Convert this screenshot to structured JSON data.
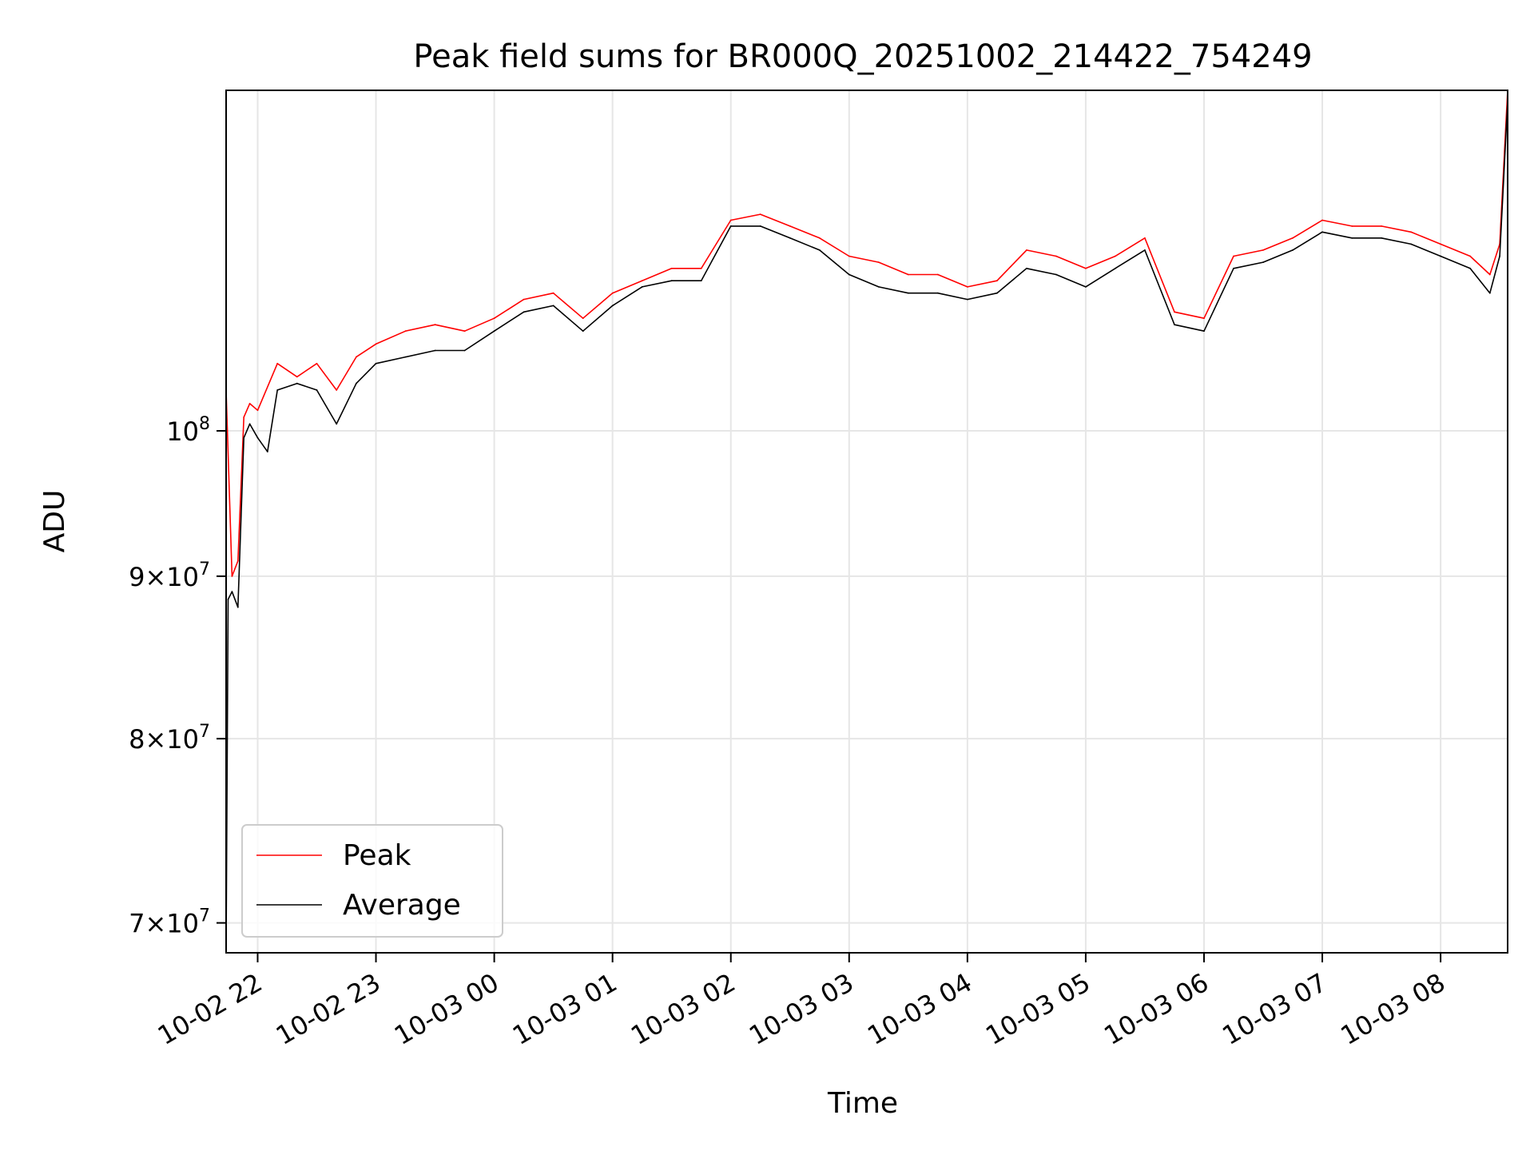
{
  "chart_data": {
    "type": "line",
    "title": "Peak field sums for BR000Q_20251002_214422_754249",
    "xlabel": "Time",
    "ylabel": "ADU",
    "y_scale": "log",
    "ylim": [
      68500000,
      128000000
    ],
    "xlim": [
      "2025-10-02 21:44",
      "2025-10-03 08:34"
    ],
    "grid": true,
    "legend_position": "lower-left",
    "x_ticks": [
      {
        "value": "2025-10-02 22:00",
        "label": "10-02 22"
      },
      {
        "value": "2025-10-02 23:00",
        "label": "10-02 23"
      },
      {
        "value": "2025-10-03 00:00",
        "label": "10-03 00"
      },
      {
        "value": "2025-10-03 01:00",
        "label": "10-03 01"
      },
      {
        "value": "2025-10-03 02:00",
        "label": "10-03 02"
      },
      {
        "value": "2025-10-03 03:00",
        "label": "10-03 03"
      },
      {
        "value": "2025-10-03 04:00",
        "label": "10-03 04"
      },
      {
        "value": "2025-10-03 05:00",
        "label": "10-03 05"
      },
      {
        "value": "2025-10-03 06:00",
        "label": "10-03 06"
      },
      {
        "value": "2025-10-03 07:00",
        "label": "10-03 07"
      },
      {
        "value": "2025-10-03 08:00",
        "label": "10-03 08"
      }
    ],
    "y_ticks": [
      {
        "value": 70000000,
        "mant": "7",
        "exp": "7"
      },
      {
        "value": 80000000,
        "mant": "8",
        "exp": "7"
      },
      {
        "value": 90000000,
        "mant": "9",
        "exp": "7"
      },
      {
        "value": 100000000,
        "mant": "",
        "exp": "8"
      }
    ],
    "series": [
      {
        "name": "Peak",
        "color": "#ff0000",
        "x": [
          "2025-10-02 21:44",
          "2025-10-02 21:47",
          "2025-10-02 21:50",
          "2025-10-02 21:53",
          "2025-10-02 21:56",
          "2025-10-02 22:00",
          "2025-10-02 22:10",
          "2025-10-02 22:20",
          "2025-10-02 22:30",
          "2025-10-02 22:40",
          "2025-10-02 22:50",
          "2025-10-02 23:00",
          "2025-10-02 23:15",
          "2025-10-02 23:30",
          "2025-10-02 23:45",
          "2025-10-03 00:00",
          "2025-10-03 00:15",
          "2025-10-03 00:30",
          "2025-10-03 00:45",
          "2025-10-03 01:00",
          "2025-10-03 01:15",
          "2025-10-03 01:30",
          "2025-10-03 01:45",
          "2025-10-03 02:00",
          "2025-10-03 02:15",
          "2025-10-03 02:30",
          "2025-10-03 02:45",
          "2025-10-03 03:00",
          "2025-10-03 03:15",
          "2025-10-03 03:30",
          "2025-10-03 03:45",
          "2025-10-03 04:00",
          "2025-10-03 04:15",
          "2025-10-03 04:30",
          "2025-10-03 04:45",
          "2025-10-03 05:00",
          "2025-10-03 05:15",
          "2025-10-03 05:30",
          "2025-10-03 05:45",
          "2025-10-03 06:00",
          "2025-10-03 06:15",
          "2025-10-03 06:30",
          "2025-10-03 06:45",
          "2025-10-03 07:00",
          "2025-10-03 07:15",
          "2025-10-03 07:30",
          "2025-10-03 07:45",
          "2025-10-03 08:00",
          "2025-10-03 08:15",
          "2025-10-03 08:25",
          "2025-10-03 08:30",
          "2025-10-03 08:34"
        ],
        "values": [
          103000000,
          90000000,
          91000000,
          101000000,
          102000000,
          101500000,
          105000000,
          104000000,
          105000000,
          103000000,
          105500000,
          106500000,
          107500000,
          108000000,
          107500000,
          108500000,
          110000000,
          110500000,
          108500000,
          110500000,
          111500000,
          112500000,
          112500000,
          116500000,
          117000000,
          116000000,
          115000000,
          113500000,
          113000000,
          112000000,
          112000000,
          111000000,
          111500000,
          114000000,
          113500000,
          112500000,
          113500000,
          115000000,
          109000000,
          108500000,
          113500000,
          114000000,
          115000000,
          116500000,
          116000000,
          116000000,
          115500000,
          114500000,
          113500000,
          112000000,
          114500000,
          128000000
        ]
      },
      {
        "name": "Average",
        "color": "#000000",
        "x": [
          "2025-10-02 21:44",
          "2025-10-02 21:45",
          "2025-10-02 21:47",
          "2025-10-02 21:50",
          "2025-10-02 21:53",
          "2025-10-02 21:56",
          "2025-10-02 22:00",
          "2025-10-02 22:05",
          "2025-10-02 22:10",
          "2025-10-02 22:20",
          "2025-10-02 22:30",
          "2025-10-02 22:40",
          "2025-10-02 22:50",
          "2025-10-02 23:00",
          "2025-10-02 23:15",
          "2025-10-02 23:30",
          "2025-10-02 23:45",
          "2025-10-03 00:00",
          "2025-10-03 00:15",
          "2025-10-03 00:30",
          "2025-10-03 00:45",
          "2025-10-03 01:00",
          "2025-10-03 01:15",
          "2025-10-03 01:30",
          "2025-10-03 01:45",
          "2025-10-03 02:00",
          "2025-10-03 02:15",
          "2025-10-03 02:30",
          "2025-10-03 02:45",
          "2025-10-03 03:00",
          "2025-10-03 03:15",
          "2025-10-03 03:30",
          "2025-10-03 03:45",
          "2025-10-03 04:00",
          "2025-10-03 04:15",
          "2025-10-03 04:30",
          "2025-10-03 04:45",
          "2025-10-03 05:00",
          "2025-10-03 05:15",
          "2025-10-03 05:30",
          "2025-10-03 05:45",
          "2025-10-03 06:00",
          "2025-10-03 06:15",
          "2025-10-03 06:30",
          "2025-10-03 06:45",
          "2025-10-03 07:00",
          "2025-10-03 07:15",
          "2025-10-03 07:30",
          "2025-10-03 07:45",
          "2025-10-03 08:00",
          "2025-10-03 08:15",
          "2025-10-03 08:25",
          "2025-10-03 08:30",
          "2025-10-03 08:34"
        ],
        "values": [
          68500000,
          88500000,
          89000000,
          88000000,
          99500000,
          100500000,
          99500000,
          98500000,
          103000000,
          103500000,
          103000000,
          100500000,
          103500000,
          105000000,
          105500000,
          106000000,
          106000000,
          107500000,
          109000000,
          109500000,
          107500000,
          109500000,
          111000000,
          111500000,
          111500000,
          116000000,
          116000000,
          115000000,
          114000000,
          112000000,
          111000000,
          110500000,
          110500000,
          110000000,
          110500000,
          112500000,
          112000000,
          111000000,
          112500000,
          114000000,
          108000000,
          107500000,
          112500000,
          113000000,
          114000000,
          115500000,
          115000000,
          115000000,
          114500000,
          113500000,
          112500000,
          110500000,
          113500000,
          127000000
        ]
      }
    ]
  }
}
